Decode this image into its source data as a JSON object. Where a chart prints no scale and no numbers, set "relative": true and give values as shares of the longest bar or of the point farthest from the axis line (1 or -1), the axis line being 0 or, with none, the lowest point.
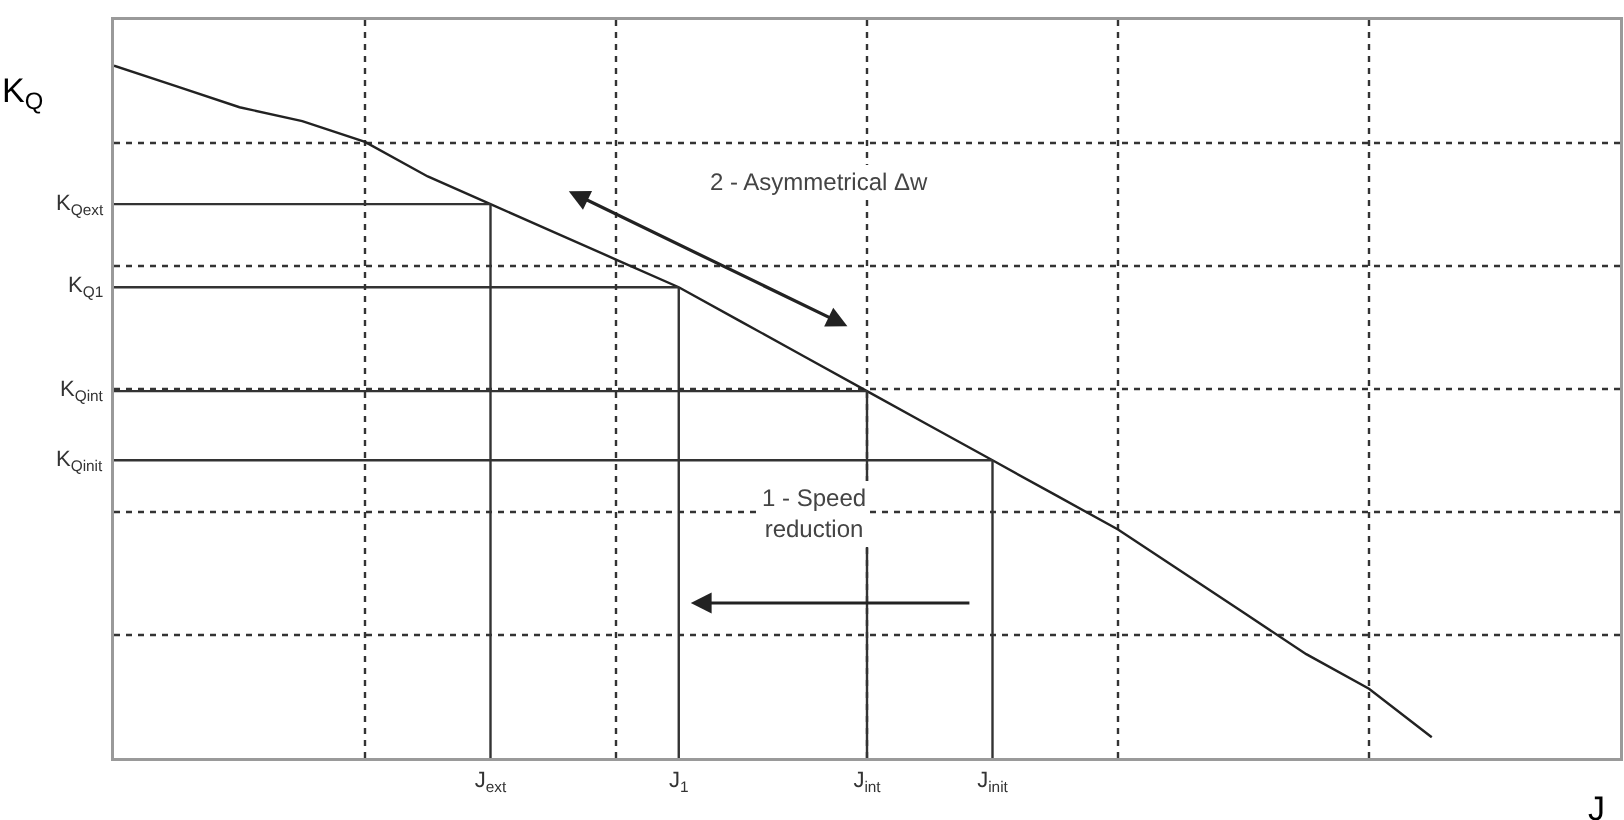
{
  "chart_data": {
    "type": "line",
    "relative": true,
    "xlabel": "J",
    "ylabel": "K$_{Q}$",
    "grid": true,
    "categories": [
      null,
      null,
      null,
      null,
      null,
      null,
      "J$_{ext}$",
      null,
      null,
      "J$_{1}$",
      null,
      null,
      "J$_{int}$",
      null,
      "J$_{init}$",
      null,
      null,
      null,
      null,
      null,
      null,
      null,
      null,
      null,
      null
    ],
    "series": [
      {
        "color": "#222222",
        "values": [
          1,
          0.97,
          0.94,
          0.92,
          0.89,
          0.84,
          0.8,
          0.76,
          0.72,
          0.68,
          0.63,
          0.58,
          0.53,
          0.48,
          0.43,
          0.38,
          0.33,
          0.27,
          0.21,
          0.15,
          0.1,
          0.03,
          null,
          null,
          null
        ]
      }
    ],
    "annotations": [
      "2 - Asymmetrical Δw",
      "1 - Speed\nreduction",
      "K$_{Qext}$",
      "K$_{Q1}$",
      "K$_{Qint}$",
      "K$_{Qinit}$"
    ]
  }
}
